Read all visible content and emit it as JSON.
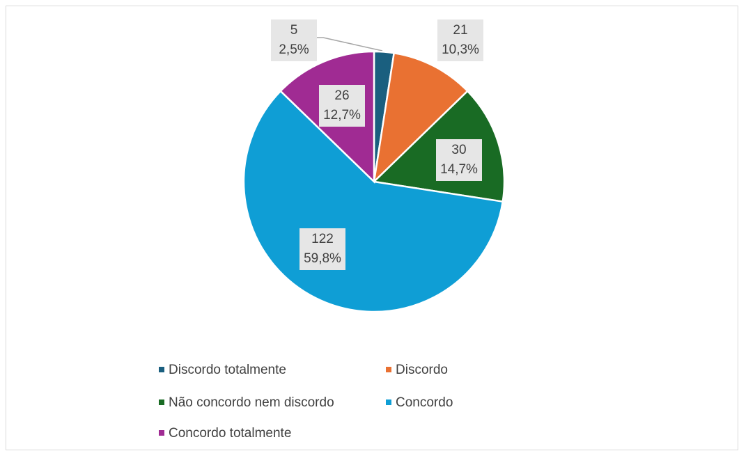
{
  "chart_data": {
    "type": "pie",
    "categories": [
      "Discordo totalmente",
      "Discordo",
      "Não concordo nem discordo",
      "Concordo",
      "Concordo totalmente"
    ],
    "values": [
      5,
      21,
      30,
      122,
      26
    ],
    "percent_labels": [
      "2,5%",
      "10,3%",
      "14,7%",
      "59,8%",
      "12,7%"
    ],
    "colors": [
      "#1a5f7f",
      "#e97132",
      "#196b24",
      "#0f9ed5",
      "#a02b93"
    ]
  }
}
